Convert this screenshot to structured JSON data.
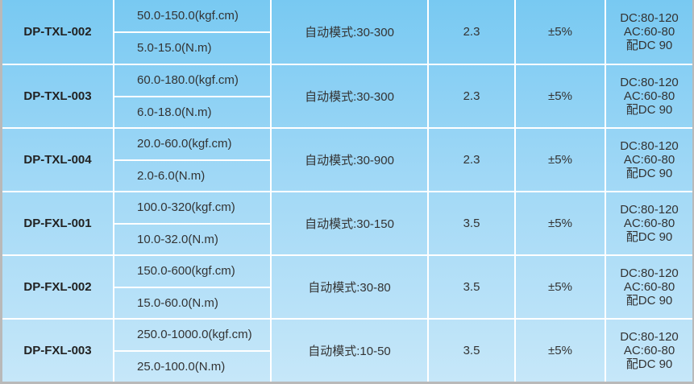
{
  "rows": [
    {
      "model": "DP-TXL-002",
      "range_kgf": "50.0-150.0(kgf.cm)",
      "range_nm": "5.0-15.0(N.m)",
      "mode": "自动模式:30-300",
      "value": "2.3",
      "accuracy": "±5%",
      "power": [
        "DC:80-120",
        "AC:60-80",
        "配DC 90"
      ]
    },
    {
      "model": "DP-TXL-003",
      "range_kgf": "60.0-180.0(kgf.cm)",
      "range_nm": "6.0-18.0(N.m)",
      "mode": "自动模式:30-300",
      "value": "2.3",
      "accuracy": "±5%",
      "power": [
        "DC:80-120",
        "AC:60-80",
        "配DC 90"
      ]
    },
    {
      "model": "DP-TXL-004",
      "range_kgf": "20.0-60.0(kgf.cm)",
      "range_nm": "2.0-6.0(N.m)",
      "mode": "自动模式:30-900",
      "value": "2.3",
      "accuracy": "±5%",
      "power": [
        "DC:80-120",
        "AC:60-80",
        "配DC 90"
      ]
    },
    {
      "model": "DP-FXL-001",
      "range_kgf": "100.0-320(kgf.cm)",
      "range_nm": "10.0-32.0(N.m)",
      "mode": "自动模式:30-150",
      "value": "3.5",
      "accuracy": "±5%",
      "power": [
        "DC:80-120",
        "AC:60-80",
        "配DC 90"
      ]
    },
    {
      "model": "DP-FXL-002",
      "range_kgf": "150.0-600(kgf.cm)",
      "range_nm": "15.0-60.0(N.m)",
      "mode": "自动模式:30-80",
      "value": "3.5",
      "accuracy": "±5%",
      "power": [
        "DC:80-120",
        "AC:60-80",
        "配DC 90"
      ]
    },
    {
      "model": "DP-FXL-003",
      "range_kgf": "250.0-1000.0(kgf.cm)",
      "range_nm": "25.0-100.0(N.m)",
      "mode": "自动模式:10-50",
      "value": "3.5",
      "accuracy": "±5%",
      "power": [
        "DC:80-120",
        "AC:60-80",
        "配DC 90"
      ]
    }
  ]
}
